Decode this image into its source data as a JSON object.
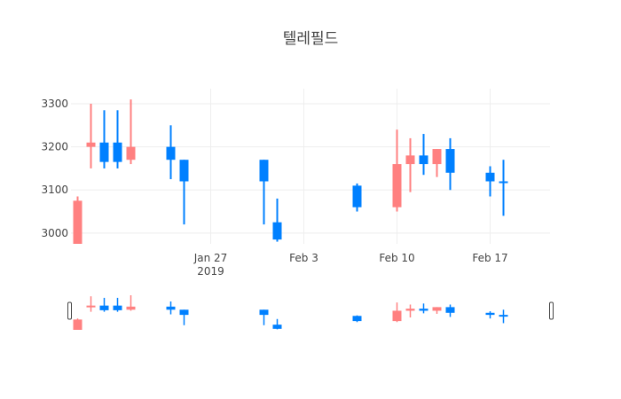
{
  "chart_data": {
    "type": "candlestick",
    "title": "텔레필드",
    "xlabel": "",
    "ylabel": "",
    "ylim": [
      2975,
      3335
    ],
    "xlim": [
      "2019-01-17",
      "2019-02-21"
    ],
    "y_ticks": [
      3000,
      3100,
      3200,
      3300
    ],
    "y_tick_labels": [
      "3000",
      "3100",
      "3200",
      "3300"
    ],
    "x_ticks": [
      "2019-01-27",
      "2019-02-03",
      "2019-02-10",
      "2019-02-17"
    ],
    "x_tick_labels": [
      "Jan 27",
      "Feb 3",
      "Feb 10",
      "Feb 17"
    ],
    "x_tick_sublabel": "2019",
    "grid": true,
    "rangeslider": true,
    "increasing_color": "#ff8080",
    "decreasing_color": "#0080ff",
    "candles": [
      {
        "date": "2019-01-17",
        "open": 2975,
        "high": 3085,
        "low": 2975,
        "close": 3075
      },
      {
        "date": "2019-01-18",
        "open": 3200,
        "high": 3300,
        "low": 3150,
        "close": 3210
      },
      {
        "date": "2019-01-19",
        "open": 3210,
        "high": 3285,
        "low": 3150,
        "close": 3165
      },
      {
        "date": "2019-01-20",
        "open": 3210,
        "high": 3285,
        "low": 3150,
        "close": 3165
      },
      {
        "date": "2019-01-21",
        "open": 3170,
        "high": 3310,
        "low": 3160,
        "close": 3200
      },
      {
        "date": "2019-01-24",
        "open": 3200,
        "high": 3250,
        "low": 3125,
        "close": 3170
      },
      {
        "date": "2019-01-25",
        "open": 3170,
        "high": 3170,
        "low": 3020,
        "close": 3120
      },
      {
        "date": "2019-01-31",
        "open": 3170,
        "high": 3170,
        "low": 3020,
        "close": 3120
      },
      {
        "date": "2019-02-01",
        "open": 3025,
        "high": 3080,
        "low": 2980,
        "close": 2985
      },
      {
        "date": "2019-02-07",
        "open": 3110,
        "high": 3115,
        "low": 3050,
        "close": 3060
      },
      {
        "date": "2019-02-10",
        "open": 3060,
        "high": 3240,
        "low": 3050,
        "close": 3160
      },
      {
        "date": "2019-02-11",
        "open": 3160,
        "high": 3220,
        "low": 3095,
        "close": 3180
      },
      {
        "date": "2019-02-12",
        "open": 3180,
        "high": 3230,
        "low": 3135,
        "close": 3160
      },
      {
        "date": "2019-02-13",
        "open": 3160,
        "high": 3195,
        "low": 3130,
        "close": 3195
      },
      {
        "date": "2019-02-14",
        "open": 3195,
        "high": 3220,
        "low": 3100,
        "close": 3140
      },
      {
        "date": "2019-02-17",
        "open": 3140,
        "high": 3155,
        "low": 3085,
        "close": 3120
      },
      {
        "date": "2019-02-18",
        "open": 3120,
        "high": 3170,
        "low": 3040,
        "close": 3118
      }
    ]
  }
}
